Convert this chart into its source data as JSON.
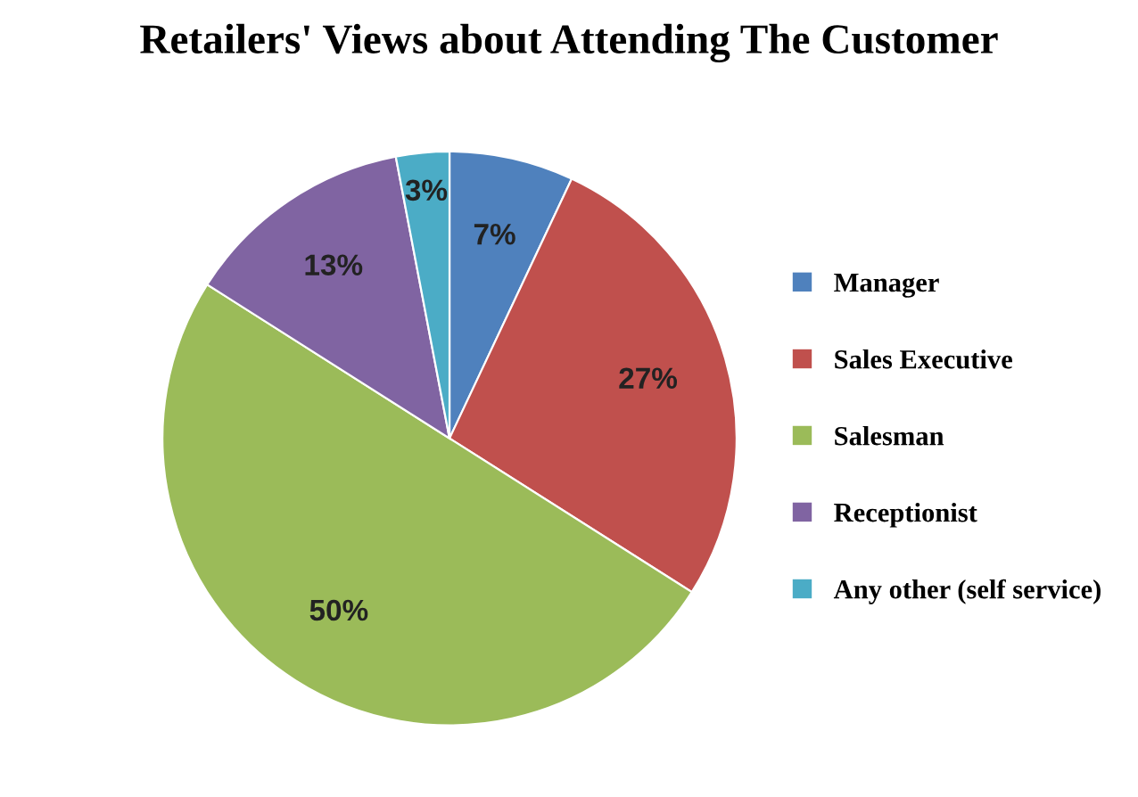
{
  "chart_data": {
    "type": "pie",
    "title": "Retailers' Views about Attending The Customer",
    "categories": [
      "Manager",
      "Sales Executive",
      "Salesman",
      "Receptionist",
      "Any other (self service)"
    ],
    "values": [
      7,
      27,
      50,
      13,
      3
    ],
    "colors": [
      "#4f81bd",
      "#c0504d",
      "#9bbb59",
      "#8064a2",
      "#4bacc6"
    ],
    "value_labels": [
      "7%",
      "27%",
      "50%",
      "13%",
      "3%"
    ],
    "legend": "right"
  }
}
